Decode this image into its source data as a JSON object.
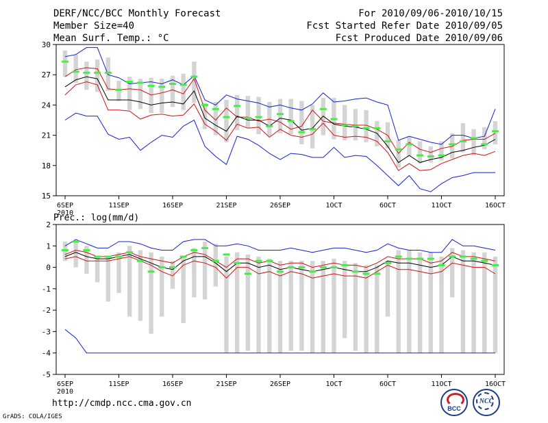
{
  "header": {
    "title": "DERF/NCC/BCC Monthly Forecast",
    "member_size": "Member Size=40",
    "variable1": "Mean Surf. Temp.: °C",
    "forecast_period": "For 2010/09/06-2010/10/15",
    "fcst_started": "Fcst Started Refer Date 2010/09/05",
    "fcst_produced": "Fcst Produced Date 2010/09/06"
  },
  "footer": {
    "url": "http://cmdp.ncc.cma.gov.cn",
    "credit": "GrADS: COLA/IGES",
    "bcc_logo_text": "BCC",
    "ncc_logo_text": "NCC"
  },
  "colors": {
    "box": "#d4d4d4",
    "mean": "#000000",
    "inner_bounds": "#d01010",
    "outer_bounds": "#1020d0",
    "observed": "#44ee44"
  },
  "chart_data": [
    {
      "type": "line",
      "title": "Mean Surf. Temp.: °C",
      "ylabel": "°C",
      "ylim": [
        15,
        30
      ],
      "yticks": [
        15,
        18,
        21,
        24,
        27,
        30
      ],
      "xlim": [
        0,
        40
      ],
      "xticks": [
        {
          "x": 0,
          "label": "6SEP",
          "sublabel": "2010"
        },
        {
          "x": 5,
          "label": "11SEP"
        },
        {
          "x": 10,
          "label": "16SEP"
        },
        {
          "x": 15,
          "label": "21SEP"
        },
        {
          "x": 20,
          "label": "26SEP"
        },
        {
          "x": 25,
          "label": "1OCT"
        },
        {
          "x": 30,
          "label": "6OCT"
        },
        {
          "x": 35,
          "label": "11OCT"
        },
        {
          "x": 40,
          "label": "16OCT"
        }
      ],
      "box_low": [
        26.8,
        26.2,
        25.5,
        25.3,
        25.4,
        24.4,
        23.5,
        23.6,
        23.2,
        23.2,
        23.8,
        23.5,
        24.2,
        21.6,
        21.0,
        20.3,
        21.5,
        21.7,
        21.1,
        20.9,
        21.2,
        21.1,
        20.1,
        19.7,
        21.0,
        20.6,
        20.5,
        20.5,
        20.3,
        19.9,
        19.7,
        17.8,
        18.9,
        18.2,
        18.3,
        18.5,
        18.7,
        19.3,
        19.0,
        19.6,
        20.1
      ],
      "box_high": [
        29.4,
        29.0,
        28.3,
        28.5,
        28.7,
        26.4,
        26.8,
        26.6,
        26.7,
        26.6,
        26.9,
        27.1,
        28.3,
        24.2,
        24.3,
        24.5,
        25.0,
        24.9,
        24.8,
        24.3,
        24.6,
        24.6,
        24.4,
        24.0,
        24.7,
        24.7,
        24.0,
        23.6,
        23.5,
        22.4,
        22.3,
        20.5,
        20.9,
        20.4,
        19.9,
        20.4,
        21.2,
        22.2,
        21.6,
        21.8,
        22.4
      ],
      "series": [
        {
          "name": "outer_upper",
          "color": "#1020d0",
          "values": [
            28.8,
            29.0,
            29.7,
            29.7,
            27.0,
            26.7,
            26.1,
            26.2,
            26.3,
            26.1,
            26.5,
            26.0,
            26.9,
            24.5,
            24.0,
            25.0,
            24.6,
            24.4,
            24.2,
            23.8,
            24.0,
            23.7,
            23.5,
            24.1,
            25.2,
            24.3,
            24.4,
            24.6,
            24.7,
            24.3,
            24.0,
            20.5,
            20.9,
            20.6,
            20.3,
            20.1,
            21.0,
            21.0,
            20.7,
            20.9,
            23.6
          ]
        },
        {
          "name": "inner_upper",
          "color": "#d01010",
          "values": [
            26.8,
            27.5,
            27.7,
            27.6,
            25.6,
            25.5,
            25.6,
            25.5,
            25.0,
            25.2,
            25.5,
            25.1,
            26.6,
            23.5,
            22.5,
            23.7,
            22.8,
            22.8,
            22.4,
            22.6,
            22.3,
            21.6,
            21.9,
            23.5,
            22.4,
            22.2,
            22.1,
            22.0,
            22.0,
            21.6,
            21.0,
            19.2,
            20.3,
            19.6,
            19.3,
            19.7,
            19.9,
            20.5,
            20.6,
            20.6,
            21.2
          ]
        },
        {
          "name": "ensemble_mean",
          "color": "#000000",
          "values": [
            25.8,
            26.5,
            26.8,
            26.6,
            24.5,
            24.5,
            24.5,
            24.3,
            24.0,
            24.2,
            24.3,
            24.1,
            25.4,
            22.7,
            22.0,
            21.4,
            22.9,
            22.5,
            22.5,
            21.9,
            22.7,
            22.5,
            21.5,
            21.7,
            22.9,
            22.1,
            21.9,
            21.8,
            21.6,
            21.2,
            19.9,
            18.3,
            19.0,
            18.3,
            18.6,
            18.8,
            19.3,
            19.5,
            19.8,
            20.0,
            20.6
          ]
        },
        {
          "name": "inner_lower",
          "color": "#d01010",
          "values": [
            25.0,
            26.0,
            26.3,
            26.0,
            23.5,
            23.5,
            23.4,
            22.6,
            23.0,
            23.1,
            22.9,
            23.0,
            24.1,
            22.1,
            21.4,
            20.5,
            22.1,
            21.7,
            21.8,
            20.8,
            21.6,
            21.0,
            20.8,
            21.1,
            22.2,
            21.0,
            20.8,
            20.9,
            20.8,
            20.4,
            19.3,
            17.5,
            18.2,
            17.5,
            17.6,
            18.2,
            18.6,
            19.0,
            19.2,
            19.0,
            19.4
          ]
        },
        {
          "name": "outer_lower",
          "color": "#1020d0",
          "values": [
            22.5,
            23.2,
            22.9,
            22.9,
            21.1,
            20.6,
            20.8,
            19.5,
            20.3,
            21.0,
            20.8,
            21.9,
            22.5,
            19.9,
            18.9,
            18.1,
            20.9,
            20.6,
            20.0,
            19.2,
            18.6,
            19.2,
            19.1,
            18.8,
            18.8,
            19.8,
            18.8,
            19.0,
            18.9,
            18.0,
            17.0,
            16.0,
            17.0,
            15.7,
            15.4,
            16.2,
            16.8,
            17.0,
            17.3,
            17.3,
            17.3
          ]
        },
        {
          "name": "observed",
          "color": "#44ee44",
          "marker": "dash",
          "values": [
            28.3,
            27.3,
            27.2,
            27.2,
            27.2,
            25.5,
            26.3,
            26.2,
            25.9,
            25.8,
            26.1,
            26.0,
            26.8,
            24.0,
            23.6,
            22.8,
            23.9,
            22.7,
            22.8,
            21.9,
            23.1,
            22.4,
            21.3,
            21.6,
            23.6,
            22.6,
            22.0,
            21.9,
            21.7,
            21.7,
            20.4,
            19.6,
            20.1,
            19.0,
            18.9,
            19.0,
            20.1,
            20.4,
            20.7,
            20.1,
            21.4
          ]
        }
      ]
    },
    {
      "type": "line",
      "title": "Prec.: log(mm/d)",
      "ylabel": "log(mm/d)",
      "ylim": [
        -5,
        2
      ],
      "yticks": [
        -5,
        -4,
        -3,
        -2,
        -1,
        0,
        1,
        2
      ],
      "xlim": [
        0,
        40
      ],
      "xticks": [
        {
          "x": 0,
          "label": "6SEP",
          "sublabel": "2010"
        },
        {
          "x": 5,
          "label": "11SEP"
        },
        {
          "x": 10,
          "label": "16SEP"
        },
        {
          "x": 15,
          "label": "21SEP"
        },
        {
          "x": 20,
          "label": "26SEP"
        },
        {
          "x": 25,
          "label": "1OCT"
        },
        {
          "x": 30,
          "label": "6OCT"
        },
        {
          "x": 35,
          "label": "11OCT"
        },
        {
          "x": 40,
          "label": "16OCT"
        }
      ],
      "box_low": [
        0.3,
        0.0,
        -0.3,
        -0.7,
        -1.6,
        -1.2,
        -2.3,
        -2.5,
        -3.1,
        -2.3,
        -1.0,
        -2.6,
        -1.4,
        -1.5,
        -0.9,
        -4.0,
        -4.0,
        -3.9,
        -4.0,
        -4.0,
        -4.0,
        -3.9,
        -3.9,
        -4.0,
        -4.0,
        -4.0,
        -3.3,
        -3.9,
        -4.0,
        -4.0,
        -2.3,
        -4.0,
        -4.0,
        -4.0,
        -4.0,
        -4.0,
        -1.4,
        -4.0,
        -4.0,
        -4.0,
        -4.0
      ],
      "box_high": [
        1.2,
        1.2,
        1.0,
        0.5,
        0.5,
        0.7,
        1.0,
        0.8,
        0.7,
        0.5,
        0.3,
        0.5,
        0.9,
        1.2,
        1.1,
        0.5,
        0.7,
        0.6,
        0.5,
        0.4,
        0.3,
        0.3,
        0.3,
        0.3,
        0.3,
        0.4,
        0.3,
        0.2,
        0.1,
        0.1,
        0.3,
        0.8,
        0.8,
        0.7,
        0.7,
        0.5,
        0.9,
        0.8,
        0.7,
        0.7,
        0.5
      ],
      "series": [
        {
          "name": "outer_upper",
          "color": "#1020d0",
          "values": [
            1.0,
            1.3,
            1.1,
            0.9,
            0.9,
            1.2,
            1.2,
            1.1,
            0.9,
            0.8,
            0.8,
            1.2,
            1.3,
            1.3,
            1.0,
            1.0,
            1.1,
            1.0,
            0.8,
            0.8,
            0.8,
            0.9,
            0.8,
            0.7,
            0.8,
            0.9,
            0.9,
            0.8,
            0.7,
            0.8,
            1.1,
            0.9,
            0.8,
            0.8,
            0.7,
            0.7,
            1.3,
            1.0,
            1.0,
            0.9,
            0.8
          ]
        },
        {
          "name": "inner_upper",
          "color": "#d01010",
          "values": [
            0.6,
            0.8,
            0.7,
            0.5,
            0.5,
            0.6,
            0.7,
            0.5,
            0.4,
            0.3,
            0.2,
            0.5,
            0.7,
            0.6,
            0.3,
            0.0,
            0.4,
            0.4,
            0.2,
            0.3,
            0.1,
            0.2,
            0.2,
            0.0,
            0.1,
            0.2,
            0.1,
            0.1,
            0.0,
            0.2,
            0.5,
            0.4,
            0.4,
            0.4,
            0.2,
            0.3,
            0.7,
            0.5,
            0.5,
            0.4,
            0.3
          ]
        },
        {
          "name": "ensemble_mean",
          "color": "#000000",
          "values": [
            0.5,
            0.7,
            0.5,
            0.4,
            0.4,
            0.5,
            0.6,
            0.4,
            0.2,
            0.0,
            -0.1,
            0.3,
            0.5,
            0.5,
            0.2,
            -0.2,
            0.2,
            0.2,
            0.0,
            0.1,
            -0.1,
            0.0,
            -0.1,
            -0.2,
            -0.1,
            0.0,
            -0.1,
            -0.2,
            -0.2,
            0.0,
            0.3,
            0.2,
            0.2,
            0.1,
            0.0,
            0.1,
            0.5,
            0.3,
            0.3,
            0.2,
            0.1
          ]
        },
        {
          "name": "inner_lower",
          "color": "#d01010",
          "values": [
            0.4,
            0.5,
            0.3,
            0.3,
            0.3,
            0.4,
            0.5,
            0.3,
            0.1,
            -0.2,
            -0.4,
            0.1,
            0.3,
            0.2,
            0.0,
            -0.5,
            0.0,
            0.0,
            -0.3,
            -0.2,
            -0.4,
            -0.2,
            -0.3,
            -0.5,
            -0.4,
            -0.3,
            -0.4,
            -0.4,
            -0.5,
            -0.2,
            0.1,
            -0.1,
            -0.1,
            -0.2,
            -0.3,
            -0.2,
            0.2,
            0.1,
            0.0,
            0.0,
            -0.3
          ]
        },
        {
          "name": "outer_lower",
          "color": "#1020d0",
          "values": [
            -2.9,
            -3.3,
            -4.0,
            -4.0,
            -4.0,
            -4.0,
            -4.0,
            -4.0,
            -4.0,
            -4.0,
            -4.0,
            -4.0,
            -4.0,
            -4.0,
            -4.0,
            -4.0,
            -4.0,
            -4.0,
            -4.0,
            -4.0,
            -4.0,
            -4.0,
            -4.0,
            -4.0,
            -4.0,
            -4.0,
            -4.0,
            -4.0,
            -4.0,
            -4.0,
            -4.0,
            -4.0,
            -4.0,
            -4.0,
            -4.0,
            -4.0,
            -4.0,
            -4.0,
            -4.0,
            -4.0,
            -4.0
          ]
        },
        {
          "name": "observed",
          "color": "#44ee44",
          "marker": "dash",
          "values": [
            0.8,
            1.2,
            0.8,
            0.5,
            0.5,
            0.5,
            0.7,
            0.3,
            -0.2,
            0.0,
            0.0,
            0.5,
            0.8,
            0.9,
            0.3,
            0.6,
            0.2,
            -0.3,
            0.3,
            0.3,
            -0.2,
            0.0,
            0.0,
            -0.2,
            0.0,
            0.0,
            0.1,
            -0.2,
            -0.3,
            -0.3,
            0.2,
            0.5,
            0.4,
            0.4,
            0.4,
            0.1,
            0.5,
            0.5,
            0.4,
            0.3,
            0.1
          ]
        }
      ]
    }
  ]
}
